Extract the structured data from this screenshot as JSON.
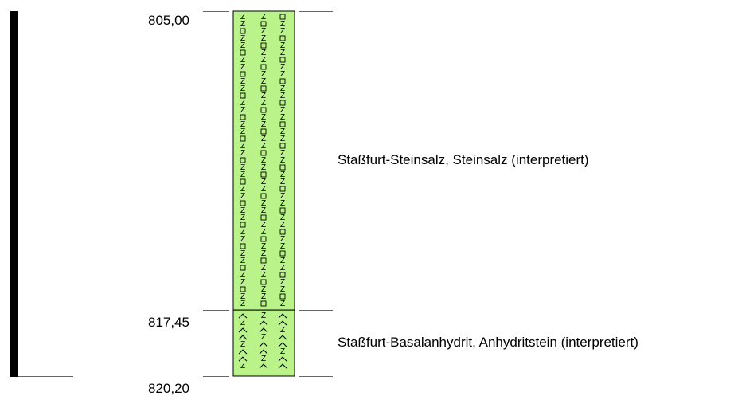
{
  "log": {
    "fill_color": "#b9f38a",
    "border_color": "#000000",
    "symbol_color": "#000000",
    "depth_range": [
      805.0,
      820.2
    ],
    "depth_labels": [
      {
        "value": 805.0,
        "text": "805,00"
      },
      {
        "value": 817.45,
        "text": "817,45"
      },
      {
        "value": 820.2,
        "text": "820,20"
      }
    ],
    "layers": [
      {
        "top": 805.0,
        "bottom": 817.45,
        "pattern": "steinsalz",
        "label": "Staßfurt-Steinsalz, Steinsalz (interpretiert)"
      },
      {
        "top": 817.45,
        "bottom": 820.2,
        "pattern": "anhydrit",
        "label": "Staßfurt-Basalanhydrit, Anhydritstein (interpretiert)"
      }
    ]
  }
}
